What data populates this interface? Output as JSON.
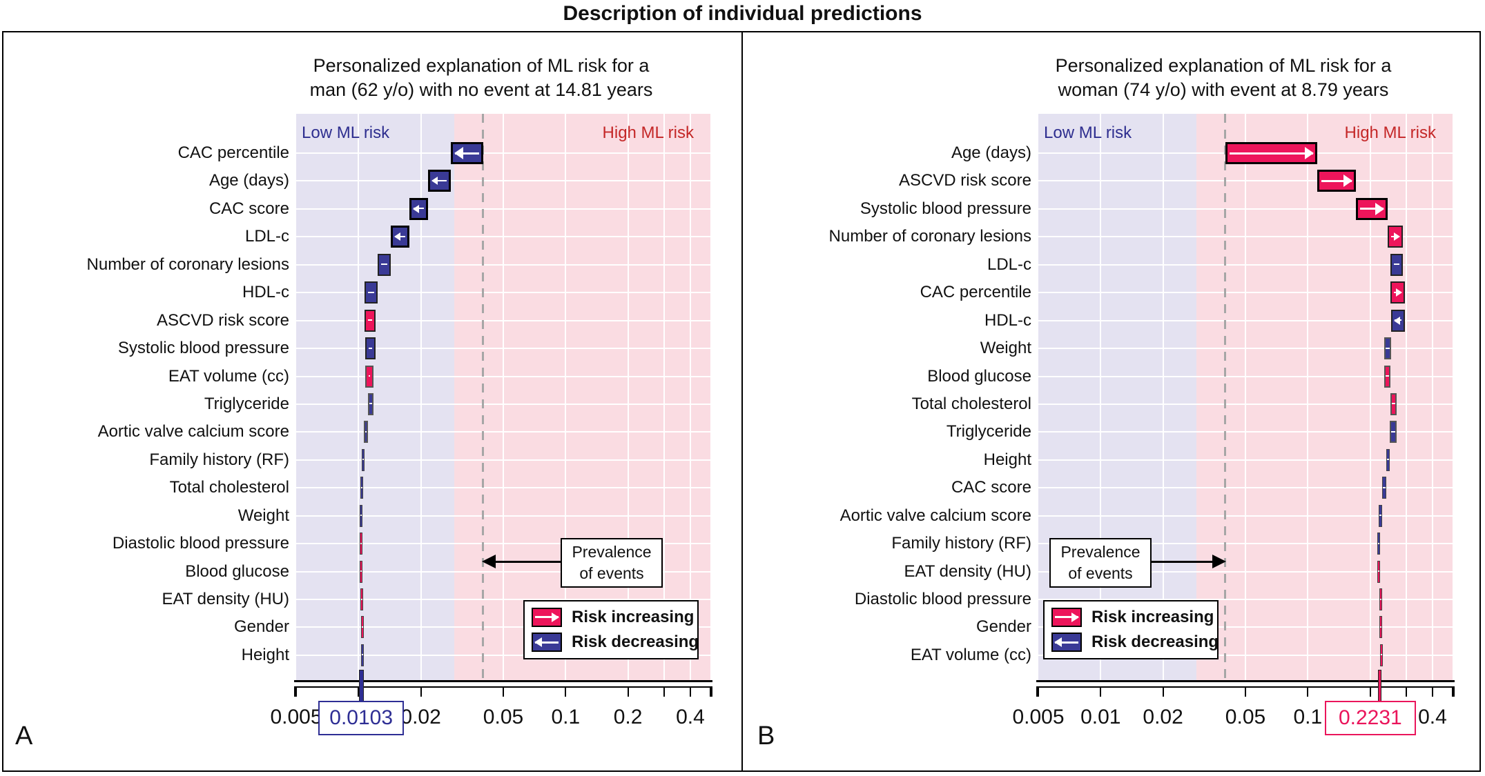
{
  "figure": {
    "title": "Description of individual predictions"
  },
  "colors": {
    "risk_increasing": "#ed155b",
    "risk_decreasing": "#3a3a96",
    "low_region_bg": "#e4e2f1",
    "high_region_bg": "#fadce2",
    "low_label_color": "#2e2e8f",
    "high_label_color": "#c42727",
    "prevalence_line": "#a6a6a6",
    "grid": "#ffffff",
    "axis": "#000000"
  },
  "legend": {
    "increasing_label": "Risk increasing",
    "decreasing_label": "Risk decreasing"
  },
  "annotations": {
    "prevalence_line1": "Prevalence",
    "prevalence_line2": "of events",
    "low_risk_label": "Low ML risk",
    "high_risk_label": "High ML risk"
  },
  "chart_data": [
    {
      "type": "bar",
      "subtype": "waterfall",
      "panel_label": "A",
      "title_line1": "Personalized explanation of ML risk for a",
      "title_line2": "man (62 y/o) with no event at 14.81 years",
      "x_scale": "log",
      "x_range": [
        0.005,
        0.5
      ],
      "x_ticks": [
        0.005,
        0.01,
        0.02,
        0.05,
        0.1,
        0.2,
        0.3,
        0.4,
        0.5
      ],
      "x_tick_labels": [
        {
          "value": 0.005,
          "label": "0.005"
        },
        {
          "value": 0.02,
          "label": "0.02"
        },
        {
          "value": 0.05,
          "label": "0.05"
        },
        {
          "value": 0.1,
          "label": "0.1"
        },
        {
          "value": 0.2,
          "label": "0.2"
        },
        {
          "value": 0.4,
          "label": "0.4"
        }
      ],
      "grid_values": [
        0.01,
        0.02,
        0.05,
        0.1,
        0.2,
        0.3,
        0.4
      ],
      "prevalence": 0.04,
      "risk_threshold": 0.029,
      "start": 0.04,
      "prediction": 0.0103,
      "prediction_label": "0.0103",
      "prediction_color": "#2e2e94",
      "steps": [
        {
          "feature": "CAC percentile",
          "direction": "decrease",
          "to": 0.028
        },
        {
          "feature": "Age (days)",
          "direction": "decrease",
          "to": 0.0217
        },
        {
          "feature": "CAC score",
          "direction": "decrease",
          "to": 0.0176
        },
        {
          "feature": "LDL-c",
          "direction": "decrease",
          "to": 0.0143
        },
        {
          "feature": "Number of coronary lesions",
          "direction": "decrease",
          "to": 0.0124
        },
        {
          "feature": "HDL-c",
          "direction": "decrease",
          "to": 0.0107
        },
        {
          "feature": "ASCVD risk score",
          "direction": "increase",
          "to": 0.0121
        },
        {
          "feature": "Systolic blood pressure",
          "direction": "decrease",
          "to": 0.0108
        },
        {
          "feature": "EAT volume (cc)",
          "direction": "increase",
          "to": 0.0118
        },
        {
          "feature": "Triglyceride",
          "direction": "decrease",
          "to": 0.0111
        },
        {
          "feature": "Aortic valve calcium score",
          "direction": "decrease",
          "to": 0.0106
        },
        {
          "feature": "Family history (RF)",
          "direction": "decrease",
          "to": 0.0104
        },
        {
          "feature": "Total cholesterol",
          "direction": "decrease",
          "to": 0.0102
        },
        {
          "feature": "Weight",
          "direction": "decrease",
          "to": 0.0101
        },
        {
          "feature": "Diastolic blood pressure",
          "direction": "increase",
          "to": 0.01015
        },
        {
          "feature": "Blood glucose",
          "direction": "increase",
          "to": 0.0102
        },
        {
          "feature": "EAT density (HU)",
          "direction": "increase",
          "to": 0.01025
        },
        {
          "feature": "Gender",
          "direction": "increase",
          "to": 0.0103
        },
        {
          "feature": "Height",
          "direction": "decrease",
          "to": 0.0103
        }
      ]
    },
    {
      "type": "bar",
      "subtype": "waterfall",
      "panel_label": "B",
      "title_line1": "Personalized explanation of ML risk for a",
      "title_line2": "woman (74 y/o) with event at 8.79 years",
      "x_scale": "log",
      "x_range": [
        0.005,
        0.5
      ],
      "x_ticks": [
        0.005,
        0.01,
        0.02,
        0.05,
        0.1,
        0.2,
        0.3,
        0.4,
        0.5
      ],
      "x_tick_labels": [
        {
          "value": 0.005,
          "label": "0.005"
        },
        {
          "value": 0.01,
          "label": "0.01"
        },
        {
          "value": 0.02,
          "label": "0.02"
        },
        {
          "value": 0.05,
          "label": "0.05"
        },
        {
          "value": 0.1,
          "label": "0.1"
        },
        {
          "value": 0.4,
          "label": "0.4"
        }
      ],
      "grid_values": [
        0.01,
        0.02,
        0.05,
        0.1,
        0.2,
        0.3,
        0.4
      ],
      "prevalence": 0.04,
      "risk_threshold": 0.029,
      "start": 0.04,
      "prediction": 0.2231,
      "prediction_label": "0.2231",
      "prediction_color": "#ea155b",
      "steps": [
        {
          "feature": "Age (days)",
          "direction": "increase",
          "to": 0.111
        },
        {
          "feature": "ASCVD risk score",
          "direction": "increase",
          "to": 0.171
        },
        {
          "feature": "Systolic blood pressure",
          "direction": "increase",
          "to": 0.243
        },
        {
          "feature": "Number of coronary lesions",
          "direction": "increase",
          "to": 0.287
        },
        {
          "feature": "LDL-c",
          "direction": "decrease",
          "to": 0.25
        },
        {
          "feature": "CAC percentile",
          "direction": "increase",
          "to": 0.295
        },
        {
          "feature": "HDL-c",
          "direction": "decrease",
          "to": 0.252
        },
        {
          "feature": "Weight",
          "direction": "decrease",
          "to": 0.234
        },
        {
          "feature": "Blood glucose",
          "direction": "increase",
          "to": 0.25
        },
        {
          "feature": "Total cholesterol",
          "direction": "increase",
          "to": 0.268
        },
        {
          "feature": "Triglyceride",
          "direction": "decrease",
          "to": 0.249
        },
        {
          "feature": "Height",
          "direction": "decrease",
          "to": 0.239
        },
        {
          "feature": "CAC score",
          "direction": "decrease",
          "to": 0.229
        },
        {
          "feature": "Aortic valve calcium score",
          "direction": "decrease",
          "to": 0.2205
        },
        {
          "feature": "Family history (RF)",
          "direction": "decrease",
          "to": 0.217
        },
        {
          "feature": "EAT density (HU)",
          "direction": "increase",
          "to": 0.221
        },
        {
          "feature": "Diastolic blood pressure",
          "direction": "increase",
          "to": 0.2222
        },
        {
          "feature": "Gender",
          "direction": "increase",
          "to": 0.2228
        },
        {
          "feature": "EAT volume (cc)",
          "direction": "increase",
          "to": 0.2231
        }
      ]
    }
  ]
}
